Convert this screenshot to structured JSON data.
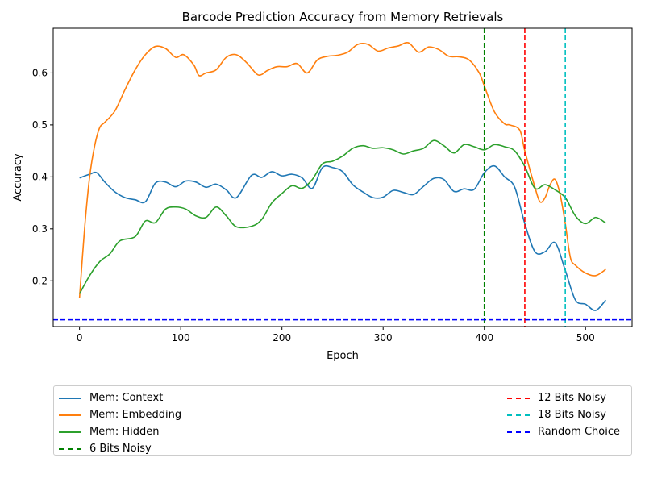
{
  "chart_data": {
    "type": "line",
    "title": "Barcode Prediction Accuracy from Memory Retrievals",
    "xlabel": "Epoch",
    "ylabel": "Accuracy",
    "xlim": [
      -26,
      546
    ],
    "ylim": [
      0.112,
      0.686
    ],
    "xticks": [
      0,
      100,
      200,
      300,
      400,
      500
    ],
    "yticks": [
      0.2,
      0.3,
      0.4,
      0.5,
      0.6
    ],
    "legend_placement": "below",
    "grid": false,
    "series": [
      {
        "name": "Mem: Context",
        "color": "#1f77b4",
        "style": "solid",
        "x": [
          0,
          10,
          17,
          25,
          35,
          45,
          55,
          65,
          75,
          85,
          95,
          105,
          115,
          125,
          135,
          145,
          155,
          170,
          180,
          190,
          200,
          210,
          220,
          230,
          240,
          250,
          260,
          270,
          280,
          290,
          300,
          310,
          320,
          330,
          340,
          350,
          360,
          370,
          380,
          390,
          400,
          410,
          420,
          430,
          440,
          450,
          460,
          470,
          480,
          490,
          500,
          510,
          520
        ],
        "y": [
          0.398,
          0.405,
          0.408,
          0.39,
          0.371,
          0.36,
          0.356,
          0.352,
          0.388,
          0.39,
          0.381,
          0.392,
          0.39,
          0.38,
          0.386,
          0.375,
          0.36,
          0.403,
          0.399,
          0.41,
          0.402,
          0.405,
          0.398,
          0.378,
          0.418,
          0.418,
          0.41,
          0.385,
          0.371,
          0.36,
          0.361,
          0.374,
          0.37,
          0.366,
          0.382,
          0.397,
          0.395,
          0.372,
          0.377,
          0.376,
          0.408,
          0.421,
          0.4,
          0.38,
          0.31,
          0.256,
          0.256,
          0.273,
          0.22,
          0.163,
          0.155,
          0.143,
          0.163
        ]
      },
      {
        "name": "Mem: Embedding",
        "color": "#ff7f0e",
        "style": "solid",
        "x": [
          0,
          5,
          10,
          15,
          20,
          25,
          35,
          45,
          55,
          65,
          75,
          85,
          95,
          103,
          113,
          118,
          125,
          135,
          145,
          155,
          165,
          175,
          180,
          185,
          195,
          205,
          215,
          225,
          235,
          245,
          255,
          265,
          275,
          285,
          295,
          305,
          315,
          325,
          335,
          345,
          355,
          365,
          375,
          385,
          395,
          400,
          410,
          420,
          425,
          435,
          440,
          450,
          455,
          460,
          465,
          470,
          475,
          480,
          485,
          490,
          500,
          510,
          520
        ],
        "y": [
          0.167,
          0.3,
          0.4,
          0.46,
          0.495,
          0.505,
          0.527,
          0.568,
          0.606,
          0.635,
          0.651,
          0.647,
          0.63,
          0.635,
          0.615,
          0.595,
          0.6,
          0.606,
          0.63,
          0.635,
          0.62,
          0.598,
          0.597,
          0.604,
          0.612,
          0.612,
          0.618,
          0.6,
          0.625,
          0.632,
          0.634,
          0.64,
          0.655,
          0.655,
          0.642,
          0.648,
          0.652,
          0.658,
          0.64,
          0.65,
          0.645,
          0.632,
          0.631,
          0.625,
          0.6,
          0.575,
          0.525,
          0.502,
          0.5,
          0.49,
          0.45,
          0.38,
          0.352,
          0.36,
          0.385,
          0.395,
          0.365,
          0.31,
          0.245,
          0.23,
          0.215,
          0.21,
          0.222
        ]
      },
      {
        "name": "Mem: Hidden",
        "color": "#2ca02c",
        "style": "solid",
        "x": [
          0,
          10,
          20,
          30,
          40,
          55,
          65,
          75,
          85,
          95,
          105,
          115,
          125,
          135,
          145,
          155,
          170,
          180,
          190,
          200,
          210,
          220,
          230,
          240,
          250,
          260,
          270,
          280,
          290,
          300,
          310,
          320,
          330,
          340,
          350,
          360,
          370,
          380,
          390,
          400,
          410,
          420,
          430,
          440,
          450,
          460,
          470,
          480,
          490,
          500,
          510,
          520
        ],
        "y": [
          0.175,
          0.21,
          0.237,
          0.252,
          0.277,
          0.285,
          0.315,
          0.312,
          0.338,
          0.342,
          0.338,
          0.325,
          0.322,
          0.342,
          0.325,
          0.304,
          0.305,
          0.318,
          0.35,
          0.368,
          0.383,
          0.378,
          0.395,
          0.425,
          0.43,
          0.44,
          0.455,
          0.46,
          0.455,
          0.456,
          0.452,
          0.444,
          0.45,
          0.455,
          0.47,
          0.46,
          0.446,
          0.462,
          0.458,
          0.452,
          0.462,
          0.458,
          0.45,
          0.42,
          0.378,
          0.385,
          0.375,
          0.36,
          0.325,
          0.31,
          0.322,
          0.311
        ]
      }
    ],
    "vlines": [
      {
        "name": "6 Bits Noisy",
        "x": 400,
        "color": "#008000",
        "style": "dashed"
      },
      {
        "name": "12 Bits Noisy",
        "x": 440,
        "color": "#ff0000",
        "style": "dashed"
      },
      {
        "name": "18 Bits Noisy",
        "x": 480,
        "color": "#00bfbf",
        "style": "dashed"
      }
    ],
    "hlines": [
      {
        "name": "Random Choice",
        "y": 0.125,
        "color": "#0000ff",
        "style": "dashed"
      }
    ],
    "legend_entries": [
      {
        "label": "Mem: Context",
        "color": "#1f77b4",
        "style": "solid"
      },
      {
        "label": "Mem: Embedding",
        "color": "#ff7f0e",
        "style": "solid"
      },
      {
        "label": "Mem: Hidden",
        "color": "#2ca02c",
        "style": "solid"
      },
      {
        "label": "6 Bits Noisy",
        "color": "#008000",
        "style": "dashed"
      },
      {
        "label": "12 Bits Noisy",
        "color": "#ff0000",
        "style": "dashed"
      },
      {
        "label": "18 Bits Noisy",
        "color": "#00bfbf",
        "style": "dashed"
      },
      {
        "label": "Random Choice",
        "color": "#0000ff",
        "style": "dashed"
      }
    ]
  }
}
